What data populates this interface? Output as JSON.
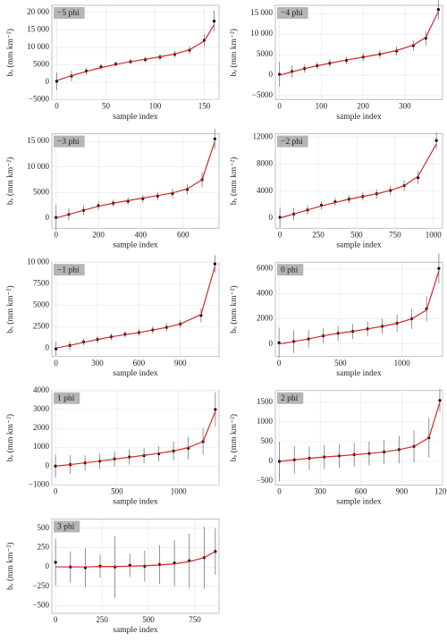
{
  "chart_data": [
    {
      "type": "scatter",
      "title": "−5 phi",
      "xlabel": "sample index",
      "ylabel": "bᵥ (mm km⁻²)",
      "xlim": [
        -5,
        165
      ],
      "xticks": [
        0,
        50,
        100,
        150
      ],
      "ylim": [
        -5000,
        22000
      ],
      "yticks": [
        {
          "value": -5000,
          "label": "−5000"
        },
        0,
        5000,
        {
          "value": 10000,
          "label": "10 000"
        },
        {
          "value": 15000,
          "label": "15 000"
        },
        {
          "value": 20000,
          "label": "20 000"
        }
      ],
      "x": [
        0,
        15,
        30,
        45,
        60,
        75,
        90,
        105,
        120,
        135,
        150,
        160
      ],
      "values": [
        300,
        1800,
        3200,
        4400,
        5200,
        5900,
        6500,
        7200,
        8000,
        9200,
        12000,
        17500
      ],
      "errors": [
        2500,
        1500,
        1000,
        800,
        700,
        700,
        800,
        900,
        1000,
        1200,
        1800,
        3000
      ],
      "fit": [
        500,
        1900,
        3100,
        4200,
        5100,
        5900,
        6600,
        7300,
        8100,
        9300,
        11800,
        16500
      ]
    },
    {
      "type": "scatter",
      "title": "−4 phi",
      "xlabel": "sample index",
      "ylabel": "bᵥ (mm km⁻²)",
      "xlim": [
        -10,
        390
      ],
      "xticks": [
        0,
        100,
        200,
        300
      ],
      "ylim": [
        -6000,
        17000
      ],
      "yticks": [
        {
          "value": -5000,
          "label": "−5000"
        },
        0,
        5000,
        {
          "value": 10000,
          "label": "10 000"
        },
        {
          "value": 15000,
          "label": "15 000"
        }
      ],
      "x": [
        0,
        30,
        60,
        90,
        120,
        160,
        200,
        240,
        280,
        320,
        350,
        380
      ],
      "values": [
        200,
        900,
        1600,
        2300,
        2900,
        3600,
        4400,
        5100,
        5900,
        7200,
        9000,
        16000
      ],
      "errors": [
        3000,
        1500,
        1000,
        900,
        900,
        900,
        1000,
        1000,
        1100,
        1300,
        1800,
        2500
      ],
      "fit": [
        0,
        800,
        1600,
        2300,
        2900,
        3700,
        4400,
        5100,
        6000,
        7300,
        9200,
        15500
      ]
    },
    {
      "type": "scatter",
      "title": "−3 phi",
      "xlabel": "sample index",
      "ylabel": "bᵥ (mm km⁻²)",
      "xlim": [
        -20,
        770
      ],
      "xticks": [
        0,
        200,
        400,
        600
      ],
      "ylim": [
        -2000,
        16500
      ],
      "yticks": [
        0,
        5000,
        {
          "value": 10000,
          "label": "10 000"
        },
        {
          "value": 15000,
          "label": "15 000"
        }
      ],
      "x": [
        0,
        60,
        130,
        200,
        270,
        340,
        410,
        480,
        550,
        620,
        690,
        750
      ],
      "values": [
        100,
        700,
        1500,
        2400,
        2900,
        3300,
        3800,
        4300,
        4800,
        5600,
        7500,
        15500
      ],
      "errors": [
        2500,
        1200,
        900,
        800,
        700,
        700,
        800,
        800,
        900,
        1000,
        1500,
        2000
      ],
      "fit": [
        0,
        700,
        1500,
        2300,
        2900,
        3400,
        3900,
        4400,
        4900,
        5700,
        7500,
        15000
      ]
    },
    {
      "type": "scatter",
      "title": "−2 phi",
      "xlabel": "sample index",
      "ylabel": "bᵥ (mm km⁻²)",
      "xlim": [
        -30,
        1060
      ],
      "xticks": [
        0,
        250,
        500,
        750,
        1000
      ],
      "ylim": [
        -1500,
        12500
      ],
      "yticks": [
        0,
        4000,
        8000,
        12000
      ],
      "x": [
        0,
        90,
        180,
        270,
        360,
        450,
        540,
        630,
        720,
        810,
        900,
        1020
      ],
      "values": [
        100,
        600,
        1200,
        1900,
        2400,
        2800,
        3200,
        3600,
        4100,
        4800,
        6000,
        11500
      ],
      "errors": [
        1500,
        900,
        700,
        600,
        600,
        600,
        600,
        700,
        700,
        800,
        1000,
        1200
      ],
      "fit": [
        0,
        600,
        1200,
        1800,
        2300,
        2800,
        3200,
        3600,
        4100,
        4800,
        6200,
        11000
      ]
    },
    {
      "type": "scatter",
      "title": "−1 phi",
      "xlabel": "sample index",
      "ylabel": "bᵥ (mm km⁻²)",
      "xlim": [
        -30,
        1180
      ],
      "xticks": [
        0,
        300,
        600,
        900
      ],
      "ylim": [
        -1000,
        10000
      ],
      "yticks": [
        0,
        2500,
        5000,
        7500,
        {
          "value": 10000,
          "label": "10 000"
        }
      ],
      "x": [
        0,
        100,
        200,
        300,
        400,
        500,
        600,
        700,
        800,
        900,
        1050,
        1150
      ],
      "values": [
        -100,
        300,
        700,
        1000,
        1300,
        1600,
        1800,
        2100,
        2400,
        2800,
        3800,
        9800
      ],
      "errors": [
        800,
        500,
        400,
        400,
        400,
        400,
        400,
        400,
        500,
        500,
        800,
        1000
      ],
      "fit": [
        0,
        300,
        650,
        1000,
        1300,
        1550,
        1800,
        2100,
        2400,
        2800,
        3900,
        9500
      ]
    },
    {
      "type": "scatter",
      "title": "0 phi",
      "xlabel": "sample index",
      "ylabel": "bᵥ (mm km⁻²)",
      "xlim": [
        -30,
        1330
      ],
      "xticks": [
        0,
        500,
        1000
      ],
      "ylim": [
        -1000,
        6500
      ],
      "yticks": [
        0,
        2000,
        4000,
        6000
      ],
      "x": [
        0,
        120,
        240,
        360,
        480,
        600,
        720,
        840,
        960,
        1080,
        1200,
        1300
      ],
      "values": [
        100,
        200,
        400,
        650,
        850,
        1000,
        1200,
        1400,
        1650,
        2000,
        2800,
        6000
      ],
      "errors": [
        1200,
        900,
        700,
        600,
        600,
        600,
        600,
        600,
        700,
        800,
        1000,
        1200
      ],
      "fit": [
        0,
        200,
        400,
        650,
        850,
        1000,
        1200,
        1400,
        1650,
        2000,
        2700,
        5800
      ]
    },
    {
      "type": "scatter",
      "title": "1 phi",
      "xlabel": "sample index",
      "ylabel": "bᵥ (mm km⁻²)",
      "xlim": [
        -30,
        1330
      ],
      "xticks": [
        0,
        500,
        1000
      ],
      "ylim": [
        -1000,
        4000
      ],
      "yticks": [
        {
          "value": -1000,
          "label": "−1000"
        },
        0,
        1000,
        2000,
        3000,
        4000
      ],
      "x": [
        0,
        120,
        240,
        360,
        480,
        600,
        720,
        840,
        960,
        1080,
        1200,
        1300
      ],
      "values": [
        0,
        80,
        170,
        260,
        380,
        480,
        560,
        650,
        800,
        950,
        1300,
        3000
      ],
      "errors": [
        600,
        500,
        400,
        400,
        400,
        400,
        400,
        400,
        500,
        600,
        700,
        900
      ],
      "fit": [
        0,
        80,
        170,
        270,
        370,
        470,
        570,
        680,
        800,
        980,
        1300,
        2900
      ]
    },
    {
      "type": "scatter",
      "title": "2 phi",
      "xlabel": "sample index",
      "ylabel": "bᵥ (mm km⁻²)",
      "xlim": [
        -30,
        1200
      ],
      "xticks": [
        0,
        300,
        600,
        900,
        1200
      ],
      "ylim": [
        -600,
        1800
      ],
      "yticks": [
        {
          "value": -500,
          "label": "−500"
        },
        0,
        500,
        1000,
        1500
      ],
      "x": [
        0,
        110,
        220,
        330,
        440,
        550,
        660,
        770,
        880,
        990,
        1100,
        1180
      ],
      "values": [
        0,
        40,
        80,
        110,
        140,
        170,
        200,
        240,
        300,
        380,
        600,
        1550
      ],
      "errors": [
        500,
        350,
        300,
        300,
        300,
        300,
        300,
        300,
        350,
        400,
        500,
        300
      ],
      "fit": [
        0,
        40,
        80,
        110,
        140,
        170,
        200,
        240,
        300,
        380,
        600,
        1500
      ]
    },
    {
      "type": "scatter",
      "title": "3 phi",
      "xlabel": "sample index",
      "ylabel": "bᵥ (mm km⁻²)",
      "xlim": [
        -20,
        880
      ],
      "xticks": [
        0,
        250,
        500,
        750
      ],
      "ylim": [
        -600,
        620
      ],
      "yticks": [
        {
          "value": -500,
          "label": "−500"
        },
        {
          "value": -250,
          "label": "−250"
        },
        0,
        250,
        500
      ],
      "x": [
        0,
        80,
        160,
        240,
        320,
        400,
        480,
        560,
        640,
        720,
        800,
        860
      ],
      "values": [
        60,
        0,
        -10,
        10,
        0,
        20,
        10,
        30,
        50,
        80,
        120,
        200
      ],
      "errors": [
        300,
        200,
        250,
        150,
        400,
        150,
        200,
        250,
        300,
        350,
        400,
        300
      ],
      "fit": [
        0,
        0,
        0,
        5,
        5,
        10,
        15,
        25,
        40,
        70,
        120,
        200
      ]
    }
  ]
}
